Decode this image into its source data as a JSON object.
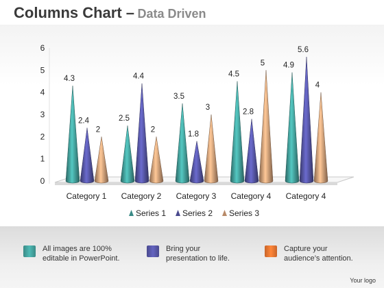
{
  "page": {
    "title_main": "Columns Chart –",
    "title_sub": "Data Driven"
  },
  "chart_data": {
    "type": "bar",
    "style": "3d-cone",
    "categories": [
      "Category 1",
      "Category 2",
      "Category 3",
      "Category 4",
      "Category 4"
    ],
    "series": [
      {
        "name": "Series 1",
        "values": [
          4.3,
          2.5,
          3.5,
          4.5,
          4.9
        ],
        "color": "#3a8a86"
      },
      {
        "name": "Series 2",
        "values": [
          2.4,
          4.4,
          1.8,
          2.8,
          5.6
        ],
        "color": "#4a4a8e"
      },
      {
        "name": "Series 3",
        "values": [
          2,
          2,
          3,
          5,
          4
        ],
        "color": "#b88a68"
      }
    ],
    "ylim": [
      0,
      6
    ],
    "yticks": [
      "0",
      "1",
      "2",
      "3",
      "4",
      "5",
      "6"
    ],
    "legend_position": "bottom",
    "grid": false
  },
  "footer": {
    "features": [
      {
        "text_line1": "All images are 100%",
        "text_line2": "editable in PowerPoint.",
        "color": "#3a8a86",
        "icon": "teal-swatch-icon"
      },
      {
        "text_line1": "Bring your",
        "text_line2": "presentation to life.",
        "color": "#4a4a8e",
        "icon": "purple-swatch-icon"
      },
      {
        "text_line1": "Capture your",
        "text_line2": "audience’s attention.",
        "color": "#c8642a",
        "icon": "orange-swatch-icon"
      }
    ],
    "logo": "Your logo"
  }
}
